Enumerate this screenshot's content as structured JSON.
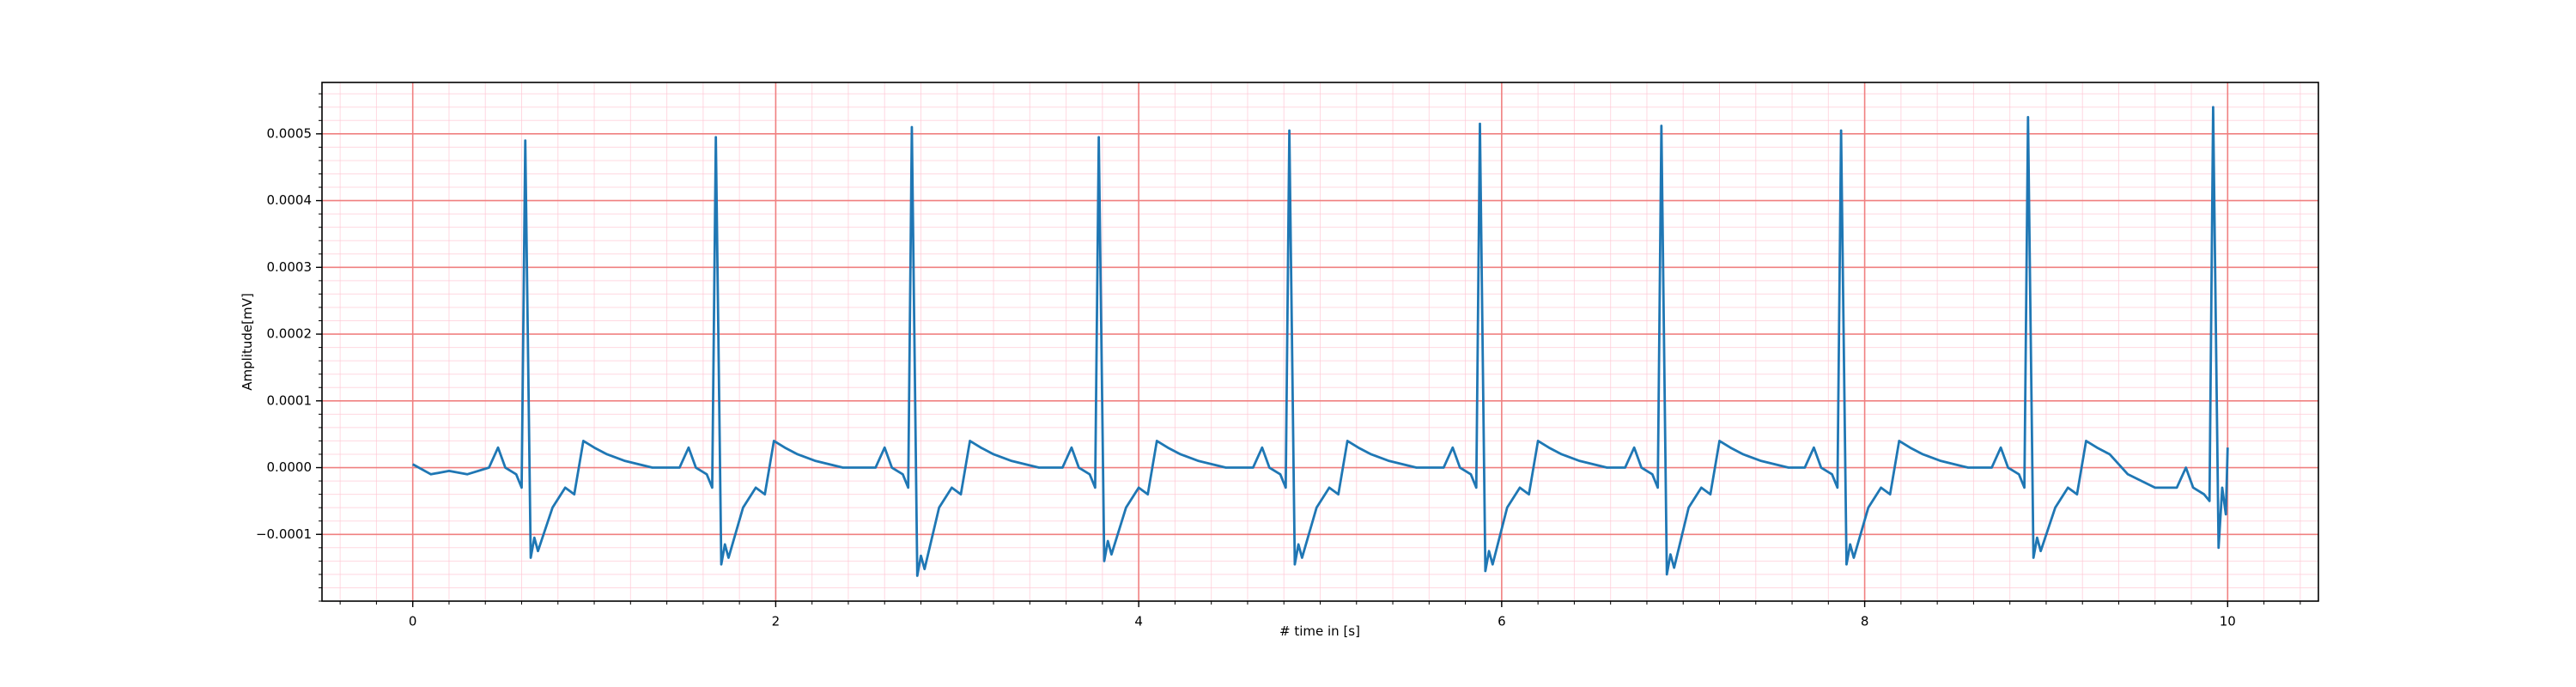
{
  "chart_data": {
    "type": "line",
    "xlabel": "# time in [s]",
    "ylabel": "Amplitude[mV]",
    "color": "#1f77b4",
    "grid": true,
    "grid_color": "#f08080",
    "minor_grid": true,
    "minor_grid_color": "#ffc8d4",
    "xlim": [
      -0.5,
      10.5
    ],
    "ylim": [
      -0.0002,
      0.000577
    ],
    "xticks": [
      0,
      2,
      4,
      6,
      8,
      10
    ],
    "yticks": [
      {
        "value": -0.0001,
        "label": "−0.0001"
      },
      {
        "value": 0,
        "label": "0.0000"
      },
      0.0001,
      0.0002,
      0.0003,
      0.0004,
      0.0005
    ],
    "x": [
      0,
      0.1,
      0.2,
      0.3,
      0.42,
      0.47,
      0.51,
      0.57,
      0.6,
      0.62,
      0.65,
      0.67,
      0.69,
      0.77,
      0.84,
      0.89,
      0.94,
      1.0,
      1.07,
      1.17,
      1.32,
      1.47,
      1.52,
      1.56,
      1.62,
      1.65,
      1.67,
      1.7,
      1.72,
      1.74,
      1.82,
      1.89,
      1.94,
      1.99,
      2.05,
      2.12,
      2.22,
      2.37,
      2.55,
      2.6,
      2.64,
      2.7,
      2.73,
      2.75,
      2.78,
      2.8,
      2.82,
      2.9,
      2.97,
      3.02,
      3.07,
      3.13,
      3.2,
      3.3,
      3.45,
      3.58,
      3.63,
      3.67,
      3.73,
      3.76,
      3.78,
      3.81,
      3.83,
      3.85,
      3.93,
      4.0,
      4.05,
      4.1,
      4.16,
      4.23,
      4.33,
      4.48,
      4.63,
      4.68,
      4.72,
      4.78,
      4.81,
      4.83,
      4.86,
      4.88,
      4.9,
      4.98,
      5.05,
      5.1,
      5.15,
      5.21,
      5.28,
      5.38,
      5.53,
      5.68,
      5.73,
      5.77,
      5.83,
      5.86,
      5.88,
      5.91,
      5.93,
      5.95,
      6.03,
      6.1,
      6.15,
      6.2,
      6.26,
      6.33,
      6.43,
      6.58,
      6.68,
      6.73,
      6.77,
      6.83,
      6.86,
      6.88,
      6.91,
      6.93,
      6.95,
      7.03,
      7.1,
      7.15,
      7.2,
      7.26,
      7.33,
      7.43,
      7.58,
      7.67,
      7.72,
      7.76,
      7.82,
      7.85,
      7.87,
      7.9,
      7.92,
      7.94,
      8.02,
      8.09,
      8.14,
      8.19,
      8.25,
      8.32,
      8.42,
      8.57,
      8.7,
      8.75,
      8.79,
      8.85,
      8.88,
      8.9,
      8.93,
      8.95,
      8.97,
      9.05,
      9.12,
      9.17,
      9.22,
      9.28,
      9.35,
      9.45,
      9.6,
      9.72,
      9.77,
      9.81,
      9.87,
      9.9,
      9.92,
      9.95,
      9.97,
      9.99,
      10.0
    ],
    "values": [
      5e-06,
      -1e-05,
      -5e-06,
      -1e-05,
      0,
      3e-05,
      0,
      -1e-05,
      -3e-05,
      0.00049,
      -0.000135,
      -0.000105,
      -0.000125,
      -6e-05,
      -3e-05,
      -4e-05,
      4e-05,
      3e-05,
      2e-05,
      1e-05,
      0,
      0,
      3e-05,
      0,
      -1e-05,
      -3e-05,
      0.000495,
      -0.000145,
      -0.000115,
      -0.000135,
      -6e-05,
      -3e-05,
      -4e-05,
      4e-05,
      3e-05,
      2e-05,
      1e-05,
      0,
      0,
      3e-05,
      0,
      -1e-05,
      -3e-05,
      0.00051,
      -0.000162,
      -0.000132,
      -0.000152,
      -6e-05,
      -3e-05,
      -4e-05,
      4e-05,
      3e-05,
      2e-05,
      1e-05,
      0,
      0,
      3e-05,
      0,
      -1e-05,
      -3e-05,
      0.000495,
      -0.00014,
      -0.00011,
      -0.00013,
      -6e-05,
      -3e-05,
      -4e-05,
      4e-05,
      3e-05,
      2e-05,
      1e-05,
      0,
      0,
      3e-05,
      0,
      -1e-05,
      -3e-05,
      0.000505,
      -0.000145,
      -0.000115,
      -0.000135,
      -6e-05,
      -3e-05,
      -4e-05,
      4e-05,
      3e-05,
      2e-05,
      1e-05,
      0,
      0,
      3e-05,
      0,
      -1e-05,
      -3e-05,
      0.000515,
      -0.000155,
      -0.000125,
      -0.000145,
      -6e-05,
      -3e-05,
      -4e-05,
      4e-05,
      3e-05,
      2e-05,
      1e-05,
      0,
      0,
      3e-05,
      0,
      -1e-05,
      -3e-05,
      0.000512,
      -0.00016,
      -0.00013,
      -0.00015,
      -6e-05,
      -3e-05,
      -4e-05,
      4e-05,
      3e-05,
      2e-05,
      1e-05,
      0,
      0,
      3e-05,
      0,
      -1e-05,
      -3e-05,
      0.000505,
      -0.000145,
      -0.000115,
      -0.000135,
      -6e-05,
      -3e-05,
      -4e-05,
      4e-05,
      3e-05,
      2e-05,
      1e-05,
      0,
      0,
      3e-05,
      0,
      -1e-05,
      -3e-05,
      0.000525,
      -0.000135,
      -0.000105,
      -0.000125,
      -6e-05,
      -3e-05,
      -4e-05,
      4e-05,
      3e-05,
      2e-05,
      -1e-05,
      -3e-05,
      -3e-05,
      0,
      -3e-05,
      -4e-05,
      -5e-05,
      0.00054,
      -0.00012,
      -3e-05,
      -7e-05,
      3e-05
    ]
  }
}
